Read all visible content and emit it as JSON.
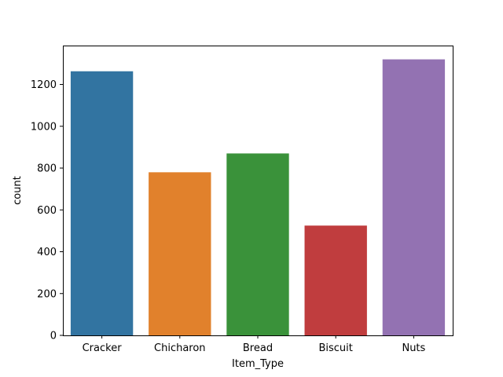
{
  "chart_data": {
    "type": "bar",
    "title": "",
    "xlabel": "Item_Type",
    "ylabel": "count",
    "categories": [
      "Cracker",
      "Chicharon",
      "Bread",
      "Biscuit",
      "Nuts"
    ],
    "values": [
      1263,
      780,
      870,
      525,
      1320
    ],
    "colors": [
      "#3274a1",
      "#e1812c",
      "#3a923a",
      "#c03d3e",
      "#9372b2"
    ],
    "ylim": [
      0,
      1386
    ],
    "yticks": [
      0,
      200,
      400,
      600,
      800,
      1000,
      1200
    ],
    "grid": false,
    "legend": "none"
  }
}
